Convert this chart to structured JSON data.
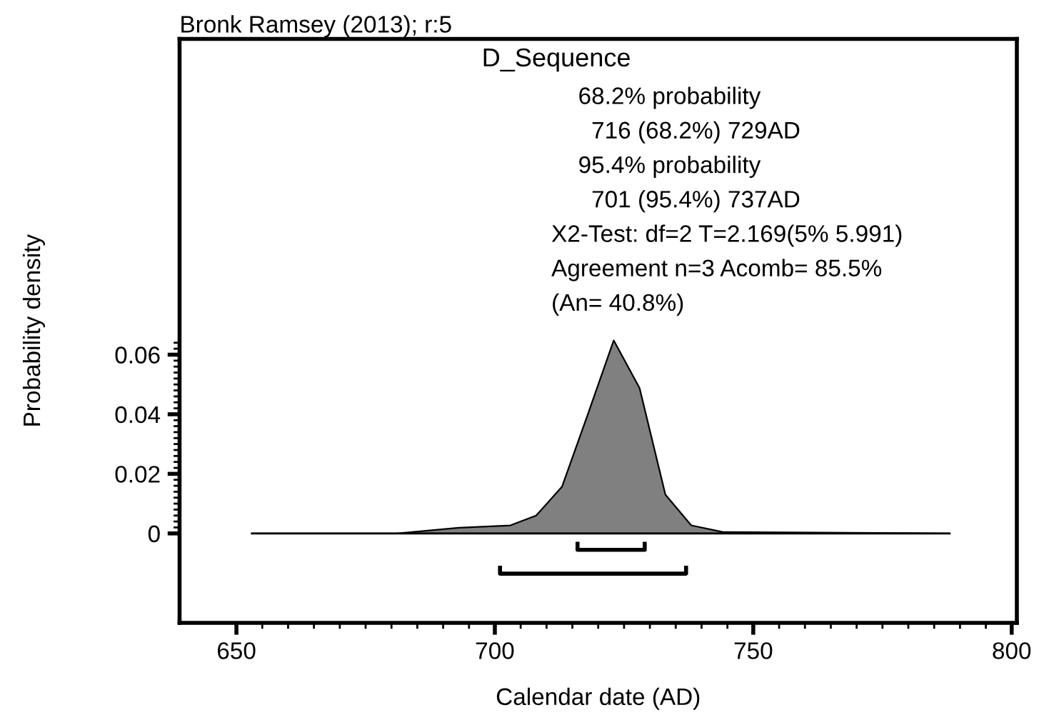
{
  "chart_data": {
    "type": "area",
    "title": "D_Sequence",
    "xlabel": "Calendar date (AD)",
    "ylabel": "Probability density",
    "annotations": [
      "Bronk Ramsey (2013); r:5",
      "68.2% probability",
      "  716 (68.2%) 729AD",
      "95.4% probability",
      "  701 (95.4%) 737AD",
      "X2-Test: df=2 T=2.169(5% 5.991)",
      "Agreement n=3 Acomb= 85.5%",
      "(An= 40.8%)"
    ],
    "series": [
      {
        "color": "#808080",
        "x": [
          653,
          681,
          693,
          703,
          708,
          713,
          718,
          723,
          728,
          733,
          738,
          744,
          788
        ],
        "values": [
          0,
          0,
          0.0019,
          0.0027,
          0.006,
          0.0157,
          0.04,
          0.0648,
          0.0488,
          0.013,
          0.0027,
          0.0005,
          0
        ]
      },
      {
        "type": "line",
        "color": "#000000",
        "x": [
          716,
          716,
          729,
          729
        ],
        "values": [
          -0.0035,
          -0.0055,
          -0.0055,
          -0.0035
        ]
      },
      {
        "type": "line",
        "color": "#000000",
        "x": [
          701,
          701,
          737,
          737
        ],
        "values": [
          -0.0115,
          -0.0135,
          -0.0135,
          -0.0115
        ]
      }
    ],
    "xlim": [
      639,
      801
    ],
    "ylim": [
      -0.03,
      0.166
    ],
    "xticks": [
      650,
      700,
      750,
      800
    ],
    "yticks": [
      0,
      0.02,
      0.04,
      0.06
    ],
    "legend": false
  }
}
